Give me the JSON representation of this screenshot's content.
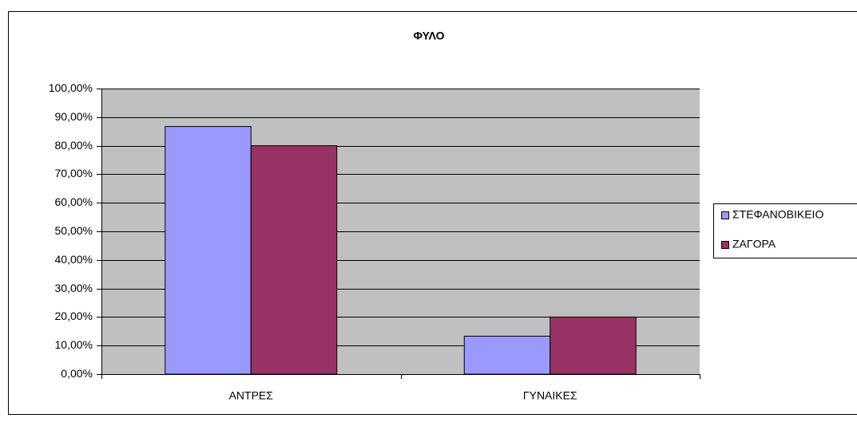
{
  "chart_data": {
    "type": "bar",
    "title": "ΦΥΛΟ",
    "categories": [
      "ΑΝΤΡΕΣ",
      "ΓΥΝΑΙΚΕΣ"
    ],
    "series": [
      {
        "name": "ΣΤΕΦΑΝΟΒΙΚΕΙΟ",
        "color": "#9999ff",
        "values": [
          86.7,
          13.3
        ]
      },
      {
        "name": "ΖΑΓΟΡΑ",
        "color": "#993366",
        "values": [
          80,
          20
        ]
      }
    ],
    "ylim": [
      0,
      100
    ],
    "yticks": [
      {
        "value": 0,
        "label": "0,00%"
      },
      {
        "value": 10,
        "label": "10,00%"
      },
      {
        "value": 20,
        "label": "20,00%"
      },
      {
        "value": 30,
        "label": "30,00%"
      },
      {
        "value": 40,
        "label": "40,00%"
      },
      {
        "value": 50,
        "label": "50,00%"
      },
      {
        "value": 60,
        "label": "60,00%"
      },
      {
        "value": 70,
        "label": "70,00%"
      },
      {
        "value": 80,
        "label": "80,00%"
      },
      {
        "value": 90,
        "label": "90,00%"
      },
      {
        "value": 100,
        "label": "100,00%"
      }
    ],
    "grid": true,
    "legend": "right",
    "plot_background": "#c0c0c0"
  }
}
